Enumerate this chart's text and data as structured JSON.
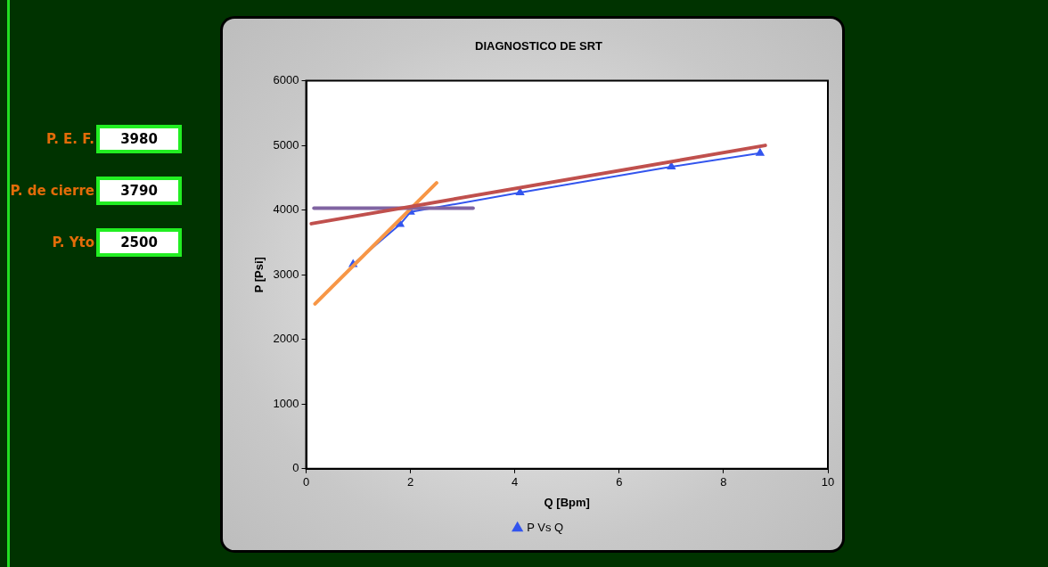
{
  "chart_data": {
    "type": "scatter",
    "title": "DIAGNOSTICO DE SRT",
    "xlabel": "Q [Bpm]",
    "ylabel": "P [Psi]",
    "xlim": [
      0,
      10
    ],
    "xticks": [
      0,
      2,
      4,
      6,
      8,
      10
    ],
    "ylim": [
      0,
      6000
    ],
    "yticks": [
      0,
      1000,
      2000,
      3000,
      4000,
      5000,
      6000
    ],
    "grid": false,
    "legend": "bottom",
    "marker": "triangle",
    "line_style": "solid",
    "annotations": [
      "P. E. F.",
      "3980",
      "P. de cierre",
      "3790",
      "P. Yto",
      "2500"
    ],
    "series": [
      {
        "name": "P Vs Q",
        "type": "line",
        "color": "#3355ee",
        "x": [
          0.9,
          1.8,
          2.0,
          4.1,
          7.0,
          8.7
        ],
        "values": [
          3160,
          3780,
          3970,
          4270,
          4670,
          4880
        ]
      },
      {
        "type": "line",
        "marker": "none",
        "color": "#c0504d",
        "x": [
          0.1,
          8.8
        ],
        "values": [
          3790,
          5000
        ]
      },
      {
        "type": "line",
        "marker": "none",
        "color": "#8064a2",
        "x": [
          0.15,
          3.2
        ],
        "values": [
          4030,
          4030
        ]
      },
      {
        "type": "line",
        "marker": "none",
        "color": "#f79646",
        "x": [
          0.17,
          2.5
        ],
        "values": [
          2550,
          4420
        ]
      }
    ]
  }
}
